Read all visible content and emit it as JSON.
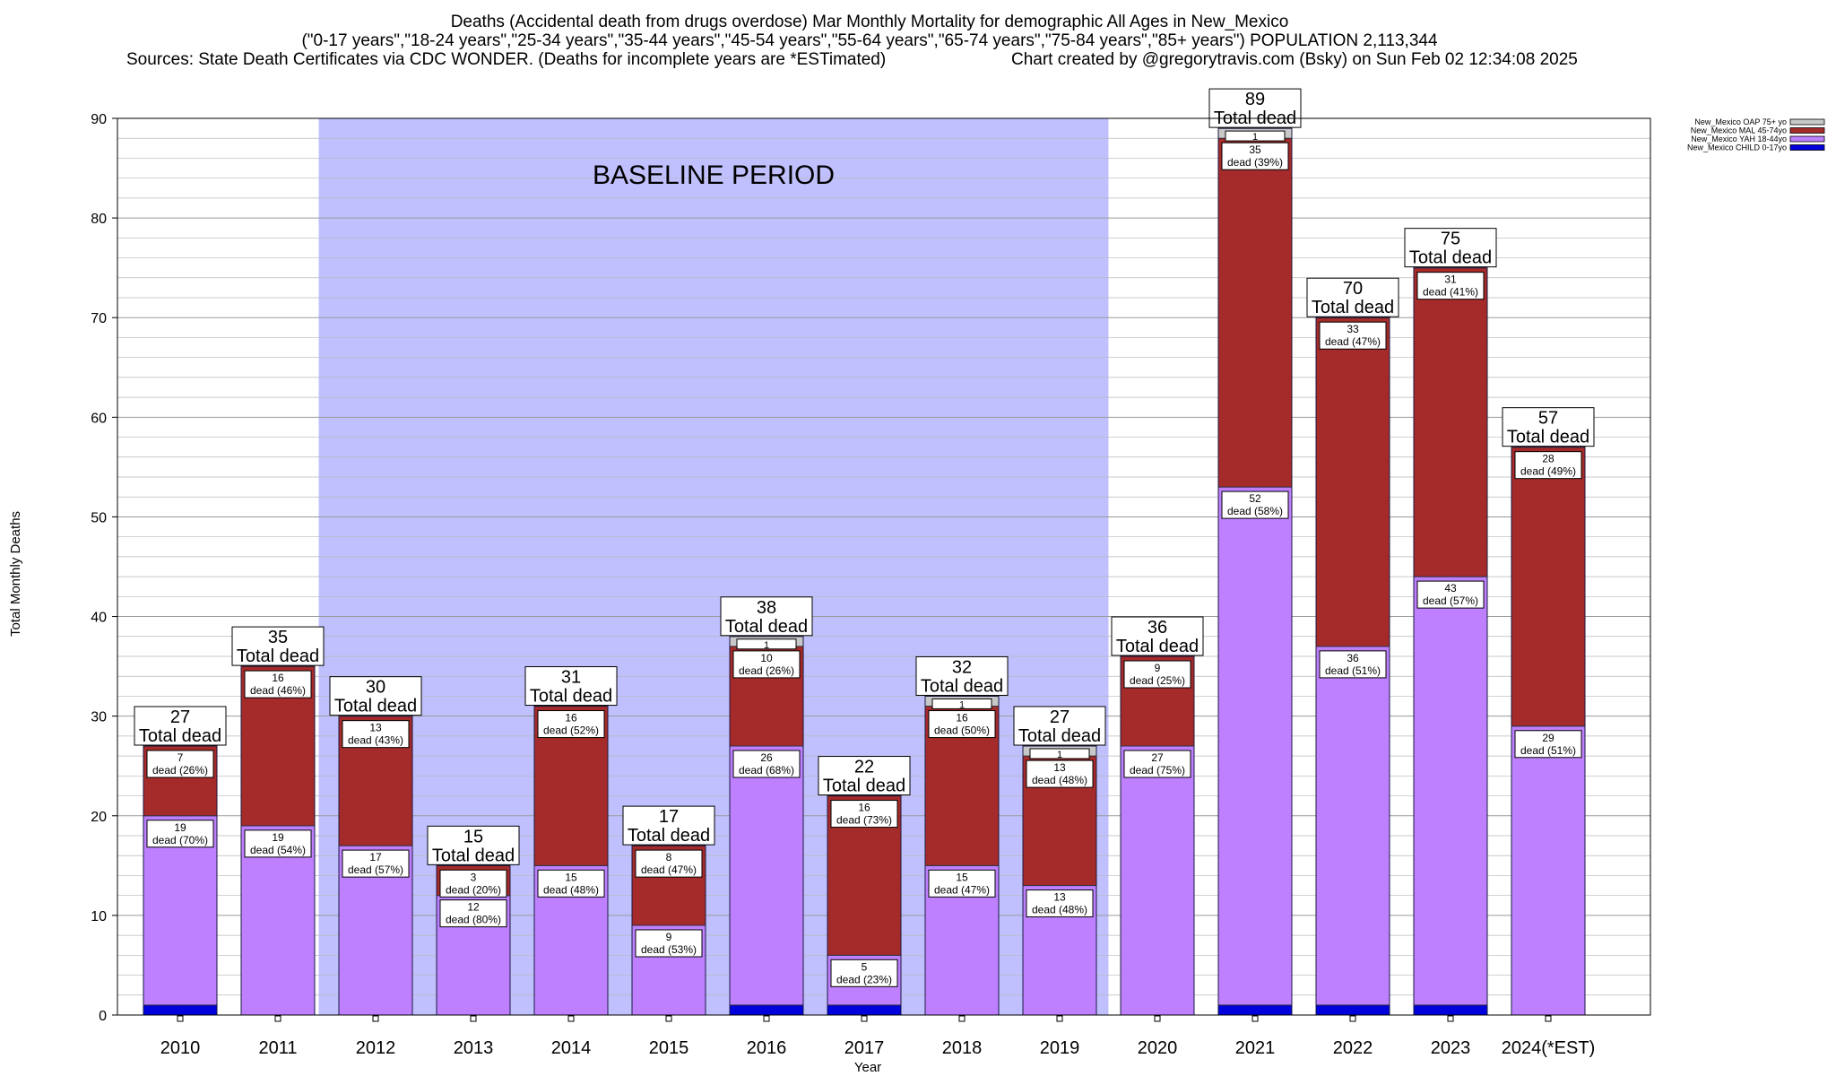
{
  "chart_data": {
    "type": "bar",
    "stacked": true,
    "title_lines": [
      "Deaths (Accidental death from drugs overdose) Mar Monthly Mortality for demographic All Ages in New_Mexico",
      "(\"0-17 years\",\"18-24 years\",\"25-34 years\",\"35-44 years\",\"45-54 years\",\"55-64 years\",\"65-74 years\",\"75-84 years\",\"85+ years\") POPULATION 2,113,344",
      "Sources: State Death Certificates via CDC WONDER. (Deaths for incomplete years are *ESTimated)",
      "Chart created by @gregorytravis.com (Bsky) on Sun Feb 02 12:34:08 2025"
    ],
    "xlabel": "Year",
    "ylabel": "Total Monthly Deaths",
    "ylim": [
      0,
      90
    ],
    "yticks": [
      0,
      10,
      20,
      30,
      40,
      50,
      60,
      70,
      80,
      90
    ],
    "grid": true,
    "legend_placement": "top-right",
    "annotation": {
      "text": "BASELINE PERIOD",
      "x_range": [
        "2012",
        "2019"
      ]
    },
    "total_label_suffix": "Total dead",
    "categories": [
      "2010",
      "2011",
      "2012",
      "2013",
      "2014",
      "2015",
      "2016",
      "2017",
      "2018",
      "2019",
      "2020",
      "2021",
      "2022",
      "2023",
      "2024(*EST)"
    ],
    "totals": [
      27,
      35,
      30,
      15,
      31,
      17,
      38,
      22,
      32,
      27,
      36,
      89,
      70,
      75,
      57
    ],
    "series": [
      {
        "name": "New_Mexico CHILD 0-17yo",
        "color": "#0000dd",
        "values": [
          1,
          0,
          0,
          0,
          0,
          0,
          1,
          1,
          0,
          0,
          0,
          1,
          1,
          1,
          0
        ],
        "labels": [
          null,
          null,
          null,
          null,
          null,
          null,
          null,
          null,
          null,
          null,
          null,
          null,
          null,
          null,
          null
        ]
      },
      {
        "name": "New_Mexico YAH 18-44yo",
        "color": "#bf80ff",
        "values": [
          19,
          19,
          17,
          12,
          15,
          9,
          26,
          5,
          15,
          13,
          27,
          52,
          36,
          43,
          29
        ],
        "labels": [
          "dead (70%)",
          "dead (54%)",
          "dead (57%)",
          "dead (80%)",
          "dead (48%)",
          "dead (53%)",
          "dead (68%)",
          "dead (23%)",
          "dead (47%)",
          "dead (48%)",
          "dead (75%)",
          "dead (58%)",
          "dead (51%)",
          "dead (57%)",
          "dead (51%)"
        ]
      },
      {
        "name": "New_Mexico MAL 45-74yo",
        "color": "#a52a2a",
        "values": [
          7,
          16,
          13,
          3,
          16,
          8,
          10,
          16,
          16,
          13,
          9,
          35,
          33,
          31,
          28
        ],
        "labels": [
          "dead (26%)",
          "dead (46%)",
          "dead (43%)",
          "dead (20%)",
          "dead (52%)",
          "dead (47%)",
          "dead (26%)",
          "dead (73%)",
          "dead (50%)",
          "dead (48%)",
          "dead (25%)",
          "dead (39%)",
          "dead (47%)",
          "dead (41%)",
          "dead (49%)"
        ]
      },
      {
        "name": "New_Mexico OAP 75+ yo",
        "color": "#c8c8c8",
        "values": [
          0,
          0,
          0,
          0,
          0,
          0,
          1,
          0,
          1,
          1,
          0,
          1,
          0,
          0,
          0
        ],
        "labels": [
          null,
          null,
          null,
          null,
          null,
          null,
          null,
          null,
          null,
          null,
          null,
          null,
          null,
          null,
          null
        ]
      }
    ]
  }
}
